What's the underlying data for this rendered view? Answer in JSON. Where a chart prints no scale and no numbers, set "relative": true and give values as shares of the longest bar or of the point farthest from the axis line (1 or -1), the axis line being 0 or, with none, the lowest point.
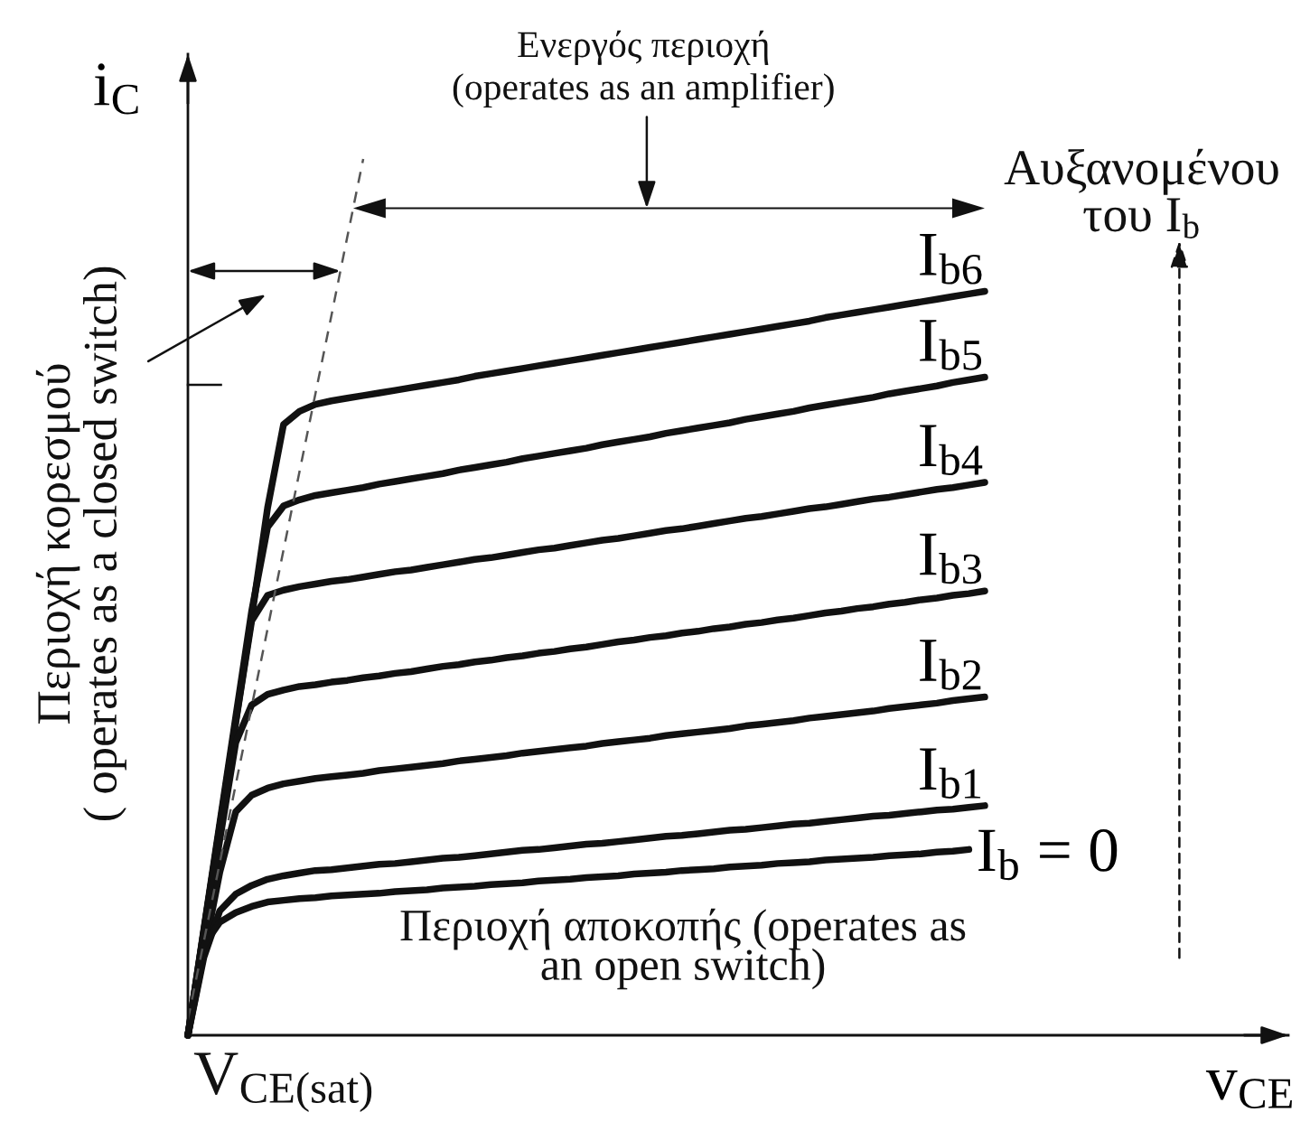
{
  "chart_data": {
    "type": "line",
    "relative": true,
    "xlabel": "v$_{CE}$",
    "ylabel": "i$_{C}$",
    "tick_labels": false,
    "line_style": "solid",
    "categories": [
      null,
      null,
      null,
      null,
      null,
      null,
      null,
      null,
      null,
      null,
      null,
      null,
      null,
      null,
      null,
      null,
      null,
      null,
      null,
      null,
      null,
      null,
      null,
      null,
      null,
      null,
      null,
      null,
      null,
      null,
      null,
      null,
      null,
      null,
      null,
      null,
      null,
      null,
      null,
      null,
      null,
      null,
      null,
      null,
      null,
      null,
      null,
      null,
      null,
      null,
      null
    ],
    "series": [
      {
        "name": "I$_{b6}$",
        "color": "#111111",
        "values": [
          0,
          0.119,
          0.238,
          0.358,
          0.477,
          0.602,
          0.697,
          0.712,
          0.72,
          0.724,
          0.727,
          0.73,
          0.733,
          0.736,
          0.739,
          0.742,
          0.745,
          0.748,
          0.752,
          0.755,
          0.758,
          0.761,
          0.764,
          0.767,
          0.77,
          0.773,
          0.776,
          0.779,
          0.782,
          0.785,
          0.788,
          0.791,
          0.794,
          0.797,
          0.8,
          0.803,
          0.806,
          0.809,
          0.812,
          0.815,
          0.819,
          0.822,
          0.825,
          0.828,
          0.831,
          0.834,
          0.837,
          0.84,
          0.843,
          0.846,
          0.849
        ]
      },
      {
        "name": "I$_{b5}$",
        "color": "#111111",
        "values": [
          0,
          0.121,
          0.242,
          0.363,
          0.484,
          0.58,
          0.604,
          0.611,
          0.616,
          0.619,
          0.622,
          0.625,
          0.629,
          0.632,
          0.635,
          0.638,
          0.641,
          0.645,
          0.648,
          0.651,
          0.654,
          0.658,
          0.661,
          0.664,
          0.667,
          0.67,
          0.674,
          0.677,
          0.68,
          0.683,
          0.687,
          0.69,
          0.693,
          0.696,
          0.699,
          0.703,
          0.706,
          0.709,
          0.712,
          0.716,
          0.719,
          0.722,
          0.725,
          0.728,
          0.732,
          0.735,
          0.738,
          0.741,
          0.745,
          0.748,
          0.751
        ]
      },
      {
        "name": "I$_{b4}$",
        "color": "#111111",
        "values": [
          0,
          0.119,
          0.238,
          0.357,
          0.473,
          0.502,
          0.508,
          0.512,
          0.515,
          0.518,
          0.52,
          0.523,
          0.526,
          0.529,
          0.531,
          0.534,
          0.537,
          0.54,
          0.543,
          0.545,
          0.548,
          0.551,
          0.554,
          0.556,
          0.559,
          0.562,
          0.565,
          0.567,
          0.57,
          0.573,
          0.576,
          0.578,
          0.581,
          0.584,
          0.587,
          0.59,
          0.592,
          0.595,
          0.598,
          0.601,
          0.603,
          0.606,
          0.609,
          0.612,
          0.614,
          0.617,
          0.62,
          0.623,
          0.625,
          0.628,
          0.631
        ]
      },
      {
        "name": "I$_{b3}$",
        "color": "#111111",
        "values": [
          0,
          0.111,
          0.223,
          0.334,
          0.377,
          0.389,
          0.394,
          0.398,
          0.4,
          0.403,
          0.405,
          0.408,
          0.41,
          0.413,
          0.415,
          0.418,
          0.421,
          0.423,
          0.426,
          0.428,
          0.431,
          0.433,
          0.436,
          0.438,
          0.441,
          0.443,
          0.446,
          0.449,
          0.451,
          0.454,
          0.456,
          0.459,
          0.461,
          0.464,
          0.466,
          0.469,
          0.471,
          0.474,
          0.476,
          0.479,
          0.482,
          0.484,
          0.487,
          0.489,
          0.492,
          0.494,
          0.497,
          0.499,
          0.502,
          0.504,
          0.507
        ]
      },
      {
        "name": "I$_{b2}$",
        "color": "#111111",
        "values": [
          0,
          0.093,
          0.186,
          0.255,
          0.274,
          0.282,
          0.287,
          0.29,
          0.293,
          0.295,
          0.297,
          0.299,
          0.302,
          0.304,
          0.306,
          0.308,
          0.31,
          0.313,
          0.315,
          0.317,
          0.319,
          0.322,
          0.324,
          0.326,
          0.328,
          0.33,
          0.333,
          0.335,
          0.337,
          0.339,
          0.342,
          0.344,
          0.346,
          0.348,
          0.35,
          0.353,
          0.355,
          0.357,
          0.359,
          0.362,
          0.364,
          0.366,
          0.368,
          0.37,
          0.373,
          0.375,
          0.377,
          0.379,
          0.382,
          0.384,
          0.386
        ]
      },
      {
        "name": "I$_{b1}$",
        "color": "#111111",
        "values": [
          0,
          0.089,
          0.142,
          0.161,
          0.171,
          0.178,
          0.182,
          0.185,
          0.188,
          0.189,
          0.191,
          0.193,
          0.195,
          0.196,
          0.198,
          0.2,
          0.202,
          0.203,
          0.205,
          0.207,
          0.209,
          0.211,
          0.212,
          0.214,
          0.216,
          0.218,
          0.219,
          0.221,
          0.223,
          0.225,
          0.227,
          0.228,
          0.23,
          0.232,
          0.234,
          0.235,
          0.237,
          0.239,
          0.241,
          0.242,
          0.244,
          0.246,
          0.248,
          0.25,
          0.251,
          0.253,
          0.255,
          0.257,
          0.258,
          0.26,
          0.262
        ]
      },
      {
        "name": "I$_{b}$ = 0",
        "color": "#111111",
        "values": [
          0,
          0.103,
          0.129,
          0.14,
          0.147,
          0.152,
          0.154,
          0.156,
          0.157,
          0.159,
          0.16,
          0.161,
          0.162,
          0.164,
          0.165,
          0.166,
          0.168,
          0.169,
          0.17,
          0.172,
          0.173,
          0.174,
          0.176,
          0.177,
          0.178,
          0.18,
          0.181,
          0.182,
          0.184,
          0.185,
          0.186,
          0.188,
          0.189,
          0.19,
          0.192,
          0.193,
          0.194,
          0.196,
          0.197,
          0.198,
          0.2,
          0.201,
          0.202,
          0.203,
          0.205,
          0.206,
          0.207,
          0.209,
          0.21,
          0.212,
          null
        ]
      },
      {
        "color": "#555555",
        "line_style": "dashed",
        "values": [
          0.018,
          0.107,
          0.197,
          0.286,
          0.375,
          0.464,
          0.554,
          0.643,
          0.732,
          0.821,
          0.911,
          1,
          null,
          null,
          null,
          null,
          null,
          null,
          null,
          null,
          null,
          null,
          null,
          null,
          null,
          null,
          null,
          null,
          null,
          null,
          null,
          null,
          null,
          null,
          null,
          null,
          null,
          null,
          null,
          null,
          null,
          null,
          null,
          null,
          null,
          null,
          null,
          null,
          null,
          null,
          null
        ]
      }
    ],
    "annotations": [
      "Ενεργός περιοχή\n(operates as an amplifier)",
      "Αυξανομένου\nτου I$_{b}$",
      "Περιοχή κορεσμού\n( operates as a closed switch)",
      "Περιοχή αποκοπής (operates as\nan open switch)",
      "V$_{CE(sat)}$"
    ]
  }
}
